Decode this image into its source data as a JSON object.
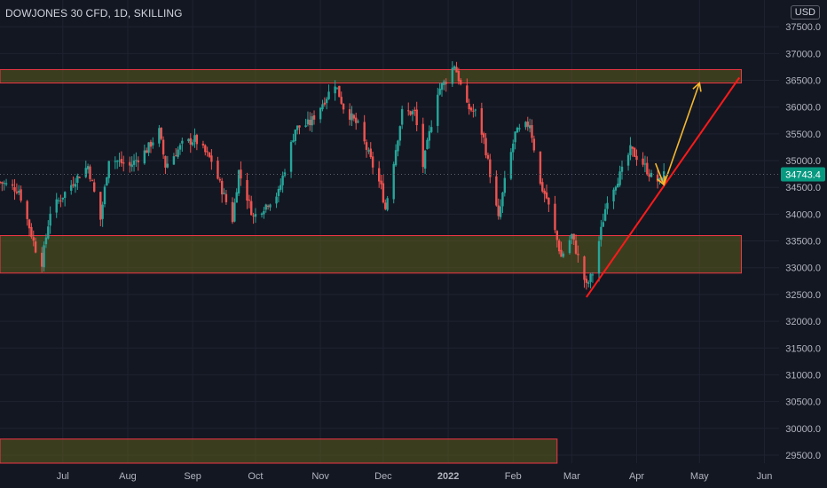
{
  "header": {
    "title": "DOWJONES 30 CFD, 1D, SKILLING",
    "currency": "USD"
  },
  "colors": {
    "background": "#131722",
    "grid": "#1f2331",
    "up": "#26a69a",
    "down": "#ef5350",
    "zone_fill": "#5c5c1e",
    "zone_stroke": "#f23645",
    "trendline": "#ff1a1a",
    "arrow": "#f5b82e",
    "price_tag": "#089981"
  },
  "chart_data": {
    "type": "candlestick",
    "y_axis": {
      "min": 29350,
      "max": 38000,
      "ticks": [
        29500,
        30000,
        30500,
        31000,
        31500,
        32000,
        32500,
        33000,
        33500,
        34000,
        34500,
        35000,
        35500,
        36000,
        36500,
        37000,
        37500
      ],
      "tick_labels": [
        "29500.0",
        "30000.0",
        "30500.0",
        "31000.0",
        "31500.0",
        "32000.0",
        "32500.0",
        "33000.0",
        "33500.0",
        "34000.0",
        "34500.0",
        "35000.0",
        "35500.0",
        "36000.0",
        "36500.0",
        "37000.0",
        "37500.0"
      ],
      "position": "right"
    },
    "x_axis": {
      "start": "2021-06-01",
      "end": "2022-06-08",
      "labels": [
        {
          "text": "Jul",
          "date": "2021-07-01"
        },
        {
          "text": "Aug",
          "date": "2021-08-01"
        },
        {
          "text": "Sep",
          "date": "2021-09-01"
        },
        {
          "text": "Oct",
          "date": "2021-10-01"
        },
        {
          "text": "Nov",
          "date": "2021-11-01"
        },
        {
          "text": "Dec",
          "date": "2021-12-01"
        },
        {
          "text": "2022",
          "date": "2022-01-01"
        },
        {
          "text": "Feb",
          "date": "2022-02-01"
        },
        {
          "text": "Mar",
          "date": "2022-03-01"
        },
        {
          "text": "Apr",
          "date": "2022-04-01"
        },
        {
          "text": "May",
          "date": "2022-05-01"
        },
        {
          "text": "Jun",
          "date": "2022-06-01"
        }
      ]
    },
    "last_price": 34743.4,
    "last_price_label": "34743.4",
    "price_path": [
      [
        "2021-06-01",
        34600
      ],
      [
        "2021-06-10",
        34450
      ],
      [
        "2021-06-18",
        33350
      ],
      [
        "2021-06-21",
        33100
      ],
      [
        "2021-06-25",
        34050
      ],
      [
        "2021-07-07",
        34650
      ],
      [
        "2021-07-13",
        34900
      ],
      [
        "2021-07-19",
        33900
      ],
      [
        "2021-07-23",
        35050
      ],
      [
        "2021-08-02",
        34900
      ],
      [
        "2021-08-10",
        35200
      ],
      [
        "2021-08-16",
        35550
      ],
      [
        "2021-08-19",
        34900
      ],
      [
        "2021-08-27",
        35300
      ],
      [
        "2021-09-02",
        35400
      ],
      [
        "2021-09-10",
        35000
      ],
      [
        "2021-09-20",
        33900
      ],
      [
        "2021-09-23",
        34800
      ],
      [
        "2021-09-30",
        33950
      ],
      [
        "2021-10-04",
        34100
      ],
      [
        "2021-10-12",
        34400
      ],
      [
        "2021-10-20",
        35600
      ],
      [
        "2021-10-27",
        35700
      ],
      [
        "2021-11-08",
        36450
      ],
      [
        "2021-11-12",
        36000
      ],
      [
        "2021-11-19",
        35650
      ],
      [
        "2021-11-26",
        34900
      ],
      [
        "2021-11-30",
        34500
      ],
      [
        "2021-12-02",
        34100
      ],
      [
        "2021-12-06",
        35000
      ],
      [
        "2021-12-10",
        35900
      ],
      [
        "2021-12-16",
        35900
      ],
      [
        "2021-12-20",
        34900
      ],
      [
        "2021-12-27",
        36300
      ],
      [
        "2021-12-31",
        36500
      ],
      [
        "2022-01-04",
        36800
      ],
      [
        "2022-01-10",
        36000
      ],
      [
        "2022-01-14",
        35900
      ],
      [
        "2022-01-18",
        35400
      ],
      [
        "2022-01-25",
        33900
      ],
      [
        "2022-01-28",
        34600
      ],
      [
        "2022-02-02",
        35500
      ],
      [
        "2022-02-09",
        35700
      ],
      [
        "2022-02-14",
        34550
      ],
      [
        "2022-02-17",
        34300
      ],
      [
        "2022-02-24",
        33200
      ],
      [
        "2022-03-01",
        33600
      ],
      [
        "2022-03-08",
        32650
      ],
      [
        "2022-03-11",
        32900
      ],
      [
        "2022-03-18",
        34300
      ],
      [
        "2022-03-25",
        34800
      ],
      [
        "2022-03-29",
        35200
      ],
      [
        "2022-04-04",
        34950
      ],
      [
        "2022-04-08",
        34700
      ],
      [
        "2022-04-12",
        34600
      ],
      [
        "2022-04-14",
        34743
      ]
    ],
    "zones": [
      {
        "name": "resistance-zone",
        "y0": 36450,
        "y1": 36700,
        "x_start": "2021-06-01",
        "x_end": "2022-05-21"
      },
      {
        "name": "support-zone",
        "y0": 32900,
        "y1": 33600,
        "x_start": "2021-06-01",
        "x_end": "2022-05-21"
      },
      {
        "name": "lower-zone",
        "y0": 29350,
        "y1": 29800,
        "x_start": "2021-06-01",
        "x_end": "2022-02-22"
      }
    ],
    "trendline": {
      "p1": [
        "2022-03-08",
        32450
      ],
      "p2": [
        "2022-05-20",
        36550
      ]
    },
    "arrows": [
      {
        "from": [
          "2022-04-14",
          34550
        ],
        "to": [
          "2022-05-01",
          36450
        ]
      },
      {
        "from": [
          "2022-04-10",
          34950
        ],
        "to": [
          "2022-04-14",
          34550
        ]
      }
    ],
    "grid": true,
    "legend": "none"
  }
}
